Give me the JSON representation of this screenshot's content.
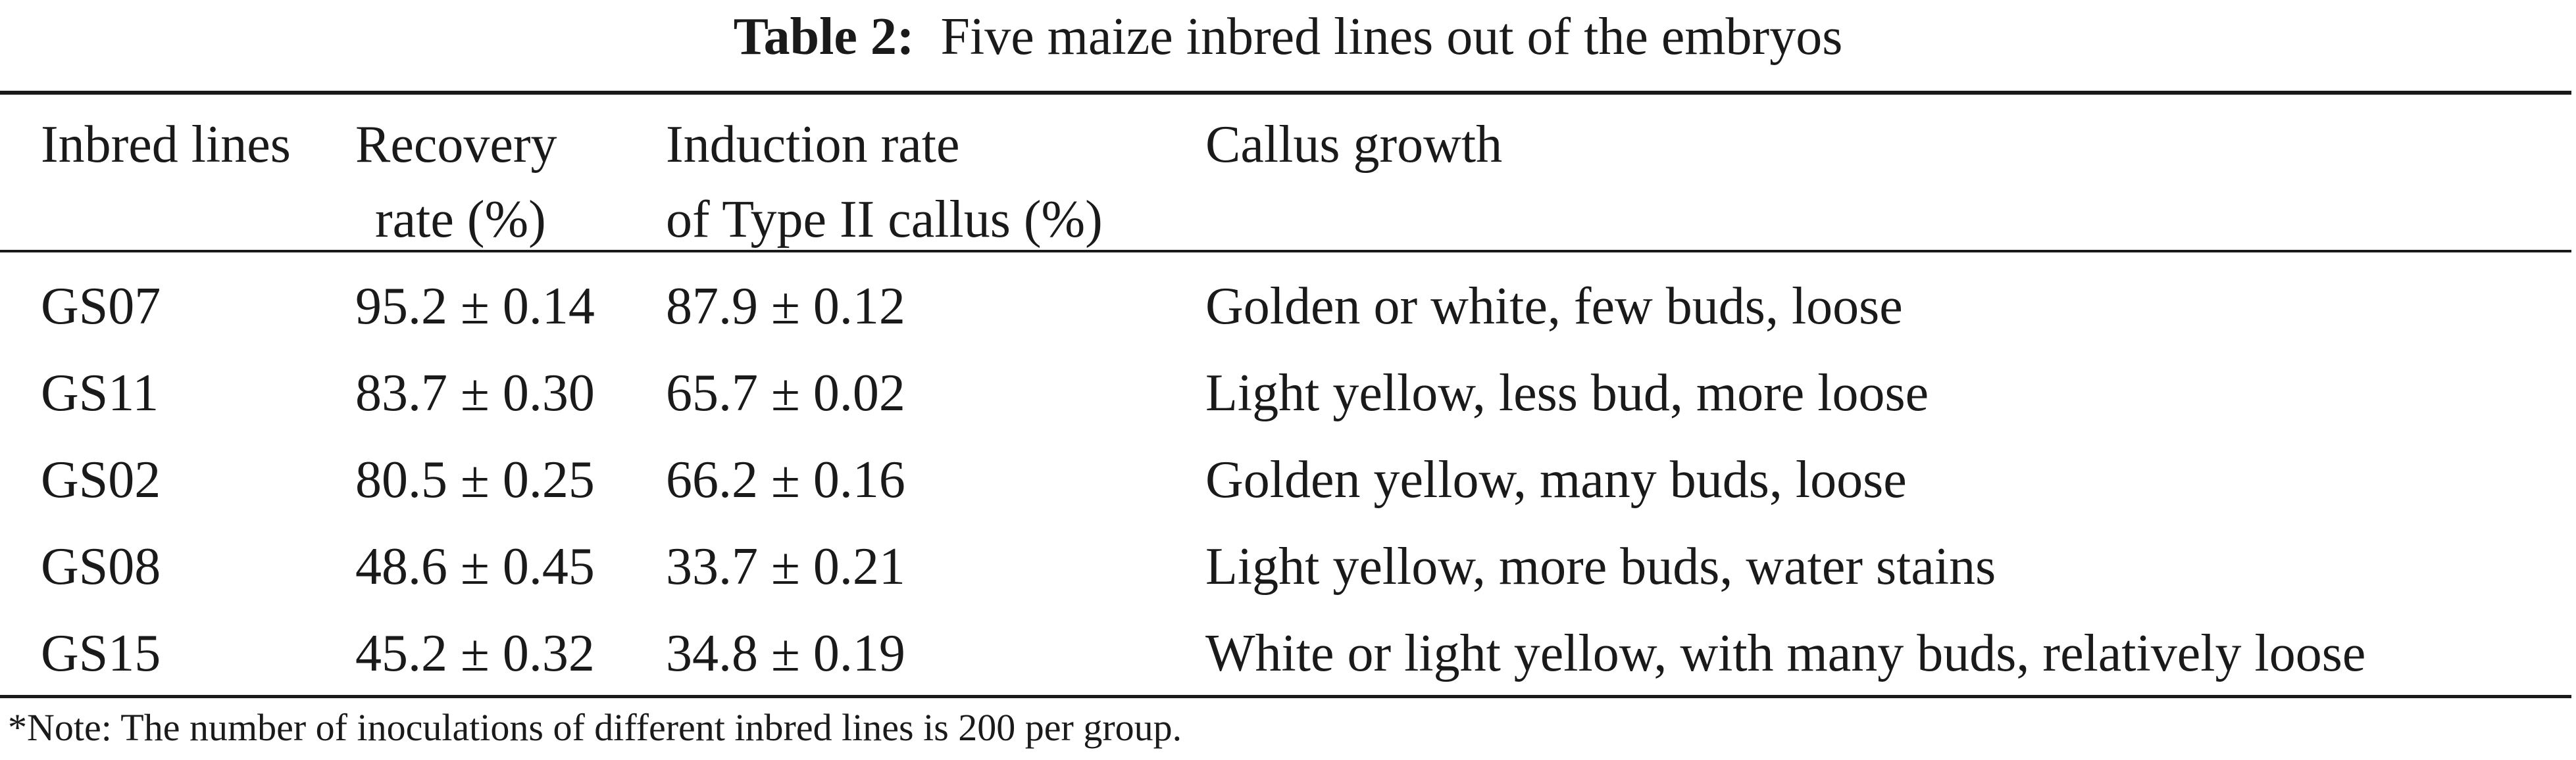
{
  "caption": {
    "label": "Table 2:",
    "text": "Five maize inbred lines out of the embryos"
  },
  "columns": [
    {
      "line1": "Inbred lines",
      "line2": ""
    },
    {
      "line1": "Recovery",
      "line2": "rate (%)"
    },
    {
      "line1": "Induction rate",
      "line2": "of Type II callus (%)"
    },
    {
      "line1": "Callus growth",
      "line2": ""
    }
  ],
  "rows": [
    {
      "line": "GS07",
      "recovery": "95.2 ± 0.14",
      "induction": "87.9 ± 0.12",
      "growth": "Golden or white, few buds, loose"
    },
    {
      "line": "GS11",
      "recovery": "83.7 ± 0.30",
      "induction": "65.7 ± 0.02",
      "growth": "Light yellow, less bud, more loose"
    },
    {
      "line": "GS02",
      "recovery": "80.5 ± 0.25",
      "induction": "66.2 ± 0.16",
      "growth": "Golden yellow, many buds, loose"
    },
    {
      "line": "GS08",
      "recovery": "48.6 ± 0.45",
      "induction": "33.7 ± 0.21",
      "growth": "Light yellow, more buds, water stains"
    },
    {
      "line": "GS15",
      "recovery": "45.2 ± 0.32",
      "induction": "34.8 ± 0.19",
      "growth": "White or light yellow, with many buds, relatively loose"
    }
  ],
  "footnote": "*Note: The number of inoculations of different inbred lines is 200 per group."
}
